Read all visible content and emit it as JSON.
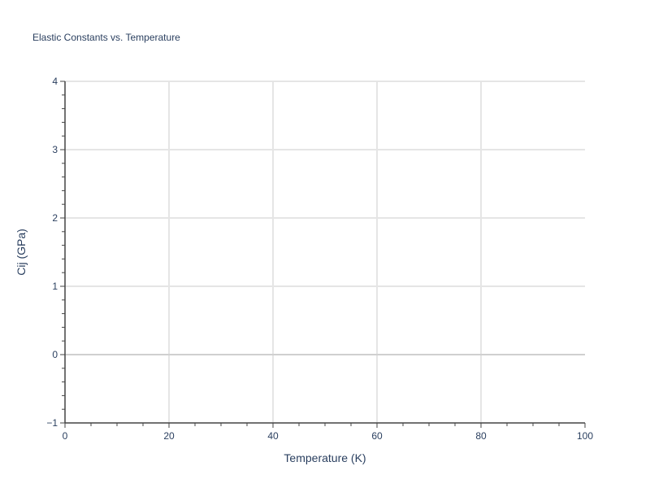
{
  "chart_data": {
    "type": "line",
    "title": "Elastic Constants vs. Temperature",
    "xlabel": "Temperature (K)",
    "ylabel": "Cij (GPa)",
    "xlim": [
      0,
      100
    ],
    "ylim": [
      -1,
      4
    ],
    "x_ticks": [
      "0",
      "20",
      "40",
      "60",
      "80",
      "100"
    ],
    "y_ticks": [
      "−1",
      "0",
      "1",
      "2",
      "3",
      "4"
    ],
    "grid": true,
    "series": []
  }
}
